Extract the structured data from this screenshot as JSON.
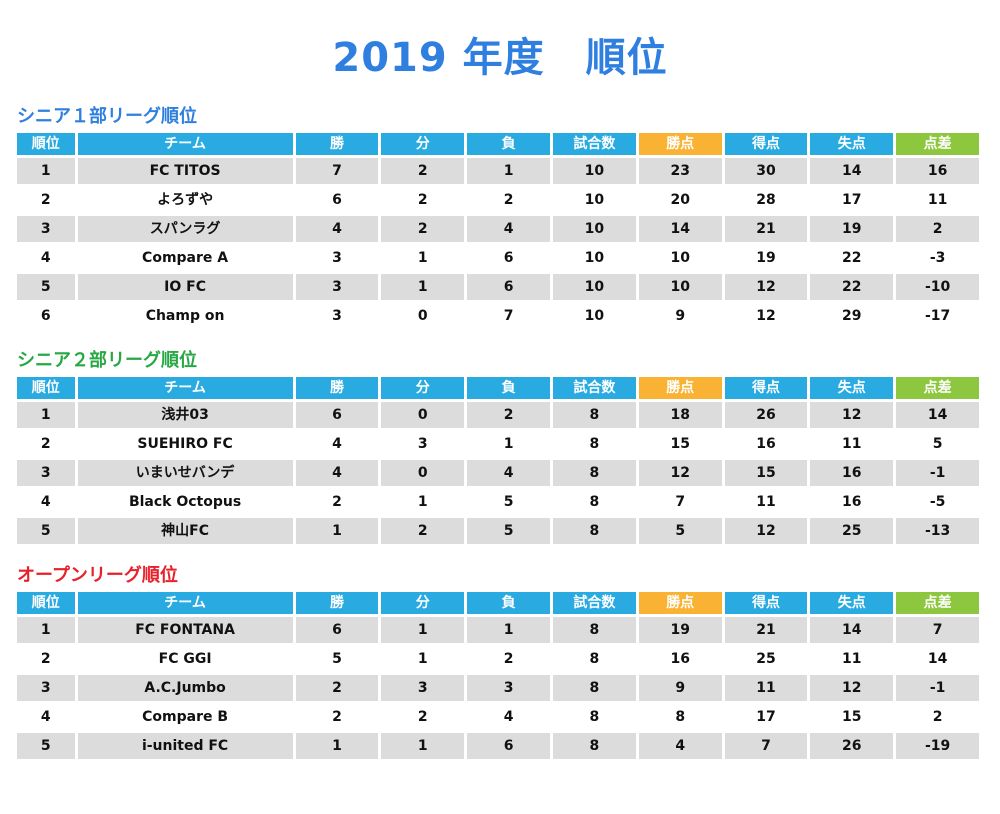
{
  "title": "2019 年度　順位",
  "headers": [
    "順位",
    "チーム",
    "勝",
    "分",
    "負",
    "試合数",
    "勝点",
    "得点",
    "失点",
    "点差"
  ],
  "colors": {
    "title": "#2f7fe0",
    "header": "#29abe2",
    "points_header": "#f9b233",
    "diff_header": "#8dc63f",
    "row_shade": "#dcdcdc"
  },
  "leagues": [
    {
      "name": "シニア１部リーグ順位",
      "color": "#2f7fe0",
      "rows": [
        [
          "1",
          "FC TITOS",
          "7",
          "2",
          "1",
          "10",
          "23",
          "30",
          "14",
          "16"
        ],
        [
          "2",
          "よろずや",
          "6",
          "2",
          "2",
          "10",
          "20",
          "28",
          "17",
          "11"
        ],
        [
          "3",
          "スパンラグ",
          "4",
          "2",
          "4",
          "10",
          "14",
          "21",
          "19",
          "2"
        ],
        [
          "4",
          "Compare A",
          "3",
          "1",
          "6",
          "10",
          "10",
          "19",
          "22",
          "-3"
        ],
        [
          "5",
          "IO FC",
          "3",
          "1",
          "6",
          "10",
          "10",
          "12",
          "22",
          "-10"
        ],
        [
          "6",
          "Champ on",
          "3",
          "0",
          "7",
          "10",
          "9",
          "12",
          "29",
          "-17"
        ]
      ]
    },
    {
      "name": "シニア２部リーグ順位",
      "color": "#27a844",
      "rows": [
        [
          "1",
          "浅井03",
          "6",
          "0",
          "2",
          "8",
          "18",
          "26",
          "12",
          "14"
        ],
        [
          "2",
          "SUEHIRO FC",
          "4",
          "3",
          "1",
          "8",
          "15",
          "16",
          "11",
          "5"
        ],
        [
          "3",
          "いまいせバンデ",
          "4",
          "0",
          "4",
          "8",
          "12",
          "15",
          "16",
          "-1"
        ],
        [
          "4",
          "Black Octopus",
          "2",
          "1",
          "5",
          "8",
          "7",
          "11",
          "16",
          "-5"
        ],
        [
          "5",
          "神山FC",
          "1",
          "2",
          "5",
          "8",
          "5",
          "12",
          "25",
          "-13"
        ]
      ]
    },
    {
      "name": "オープンリーグ順位",
      "color": "#e8202a",
      "rows": [
        [
          "1",
          "FC  FONTANA",
          "6",
          "1",
          "1",
          "8",
          "19",
          "21",
          "14",
          "7"
        ],
        [
          "2",
          "FC GGI",
          "5",
          "1",
          "2",
          "8",
          "16",
          "25",
          "11",
          "14"
        ],
        [
          "3",
          "A.C.Jumbo",
          "2",
          "3",
          "3",
          "8",
          "9",
          "11",
          "12",
          "-1"
        ],
        [
          "4",
          "Compare B",
          "2",
          "2",
          "4",
          "8",
          "8",
          "17",
          "15",
          "2"
        ],
        [
          "5",
          "i-united FC",
          "1",
          "1",
          "6",
          "8",
          "4",
          "7",
          "26",
          "-19"
        ]
      ]
    }
  ]
}
